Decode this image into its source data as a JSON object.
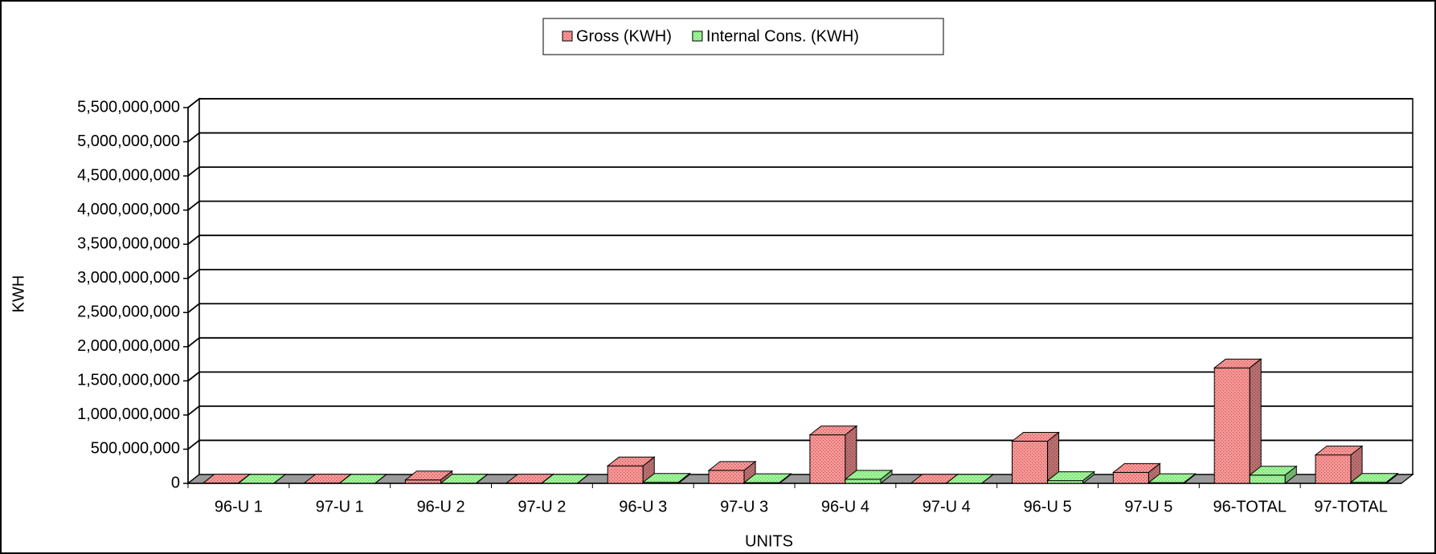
{
  "chart_data": {
    "type": "bar3d",
    "xlabel": "UNITS",
    "ylabel": "KWH",
    "categories": [
      "96-U 1",
      "97-U 1",
      "96-U 2",
      "97-U 2",
      "96-U 3",
      "97-U 3",
      "96-U 4",
      "97-U 4",
      "96-U 5",
      "97-U 5",
      "96-TOTAL",
      "97-TOTAL"
    ],
    "series": [
      {
        "name": "Gross (KWH)",
        "color": "#ff9a9a",
        "values": [
          5000000,
          4000000,
          50000000,
          5000000,
          255000000,
          190000000,
          710000000,
          3000000,
          617000000,
          160000000,
          1690000000,
          416000000
        ]
      },
      {
        "name": "Internal Cons. (KWH)",
        "color": "#99ff99",
        "values": [
          1000000,
          1000000,
          3000000,
          1000000,
          15000000,
          10000000,
          60000000,
          1000000,
          40000000,
          10000000,
          120000000,
          15000000
        ]
      }
    ],
    "ylim": [
      0,
      5500000000
    ],
    "yticks": [
      0,
      {
        "value": 500000000,
        "label": "500,000,000"
      },
      {
        "value": 1000000000,
        "label": "1,000,000,000"
      },
      {
        "value": 1500000000,
        "label": "1,500,000,000"
      },
      {
        "value": 2000000000,
        "label": "2,000,000,000"
      },
      {
        "value": 2500000000,
        "label": "2,500,000,000"
      },
      {
        "value": 3000000000,
        "label": "3,000,000,000"
      },
      {
        "value": 3500000000,
        "label": "3,500,000,000"
      },
      {
        "value": 4000000000,
        "label": "4,000,000,000"
      },
      {
        "value": 4500000000,
        "label": "4,500,000,000"
      },
      {
        "value": 5000000000,
        "label": "5,000,000,000"
      },
      {
        "value": 5500000000,
        "label": "5,500,000,000"
      }
    ],
    "grid": true,
    "legend": "top"
  }
}
